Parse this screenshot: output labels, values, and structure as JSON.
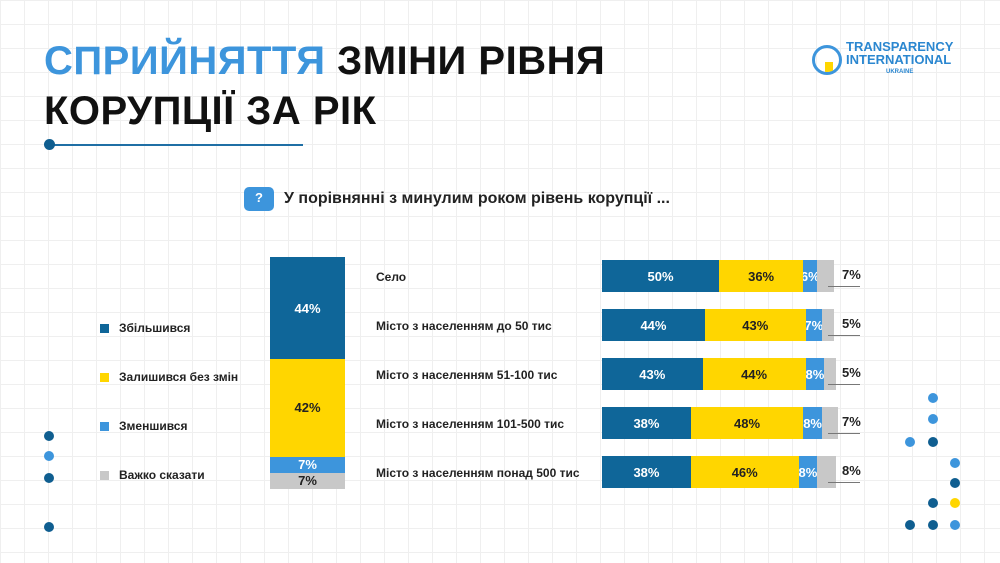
{
  "title": {
    "highlight": "СПРИЙНЯТТЯ",
    "rest_line1": " ЗМІНИ РІВНЯ",
    "line2": "КОРУПЦІЇ ЗА РІК"
  },
  "logo": {
    "line1": "TRANSPARENCY",
    "line2": "INTERNATIONAL",
    "line3": "UKRAINE"
  },
  "question": "У порівнянні з минулим роком рівень корупції ...",
  "colors": {
    "increased": "#0f6699",
    "unchanged": "#ffd600",
    "decreased": "#3d95dc",
    "hard_to_say": "#c8c8c8"
  },
  "chart_data": {
    "type": "bar",
    "stacked": true,
    "legend": [
      "Збільшився",
      "Залишився без змін",
      "Зменшився",
      "Важко сказати"
    ],
    "total": {
      "values": [
        44,
        42,
        7,
        7
      ],
      "labels": [
        "44%",
        "42%",
        "7%",
        "7%"
      ]
    },
    "categories": [
      "Село",
      "Місто з населенням до 50 тис",
      "Місто з населенням 51-100 тис",
      "Місто з населенням 101-500 тис",
      "Місто з населенням понад 500 тис"
    ],
    "series": [
      {
        "name": "Збільшився",
        "values": [
          50,
          44,
          43,
          38,
          38
        ],
        "labels": [
          "50%",
          "44%",
          "43%",
          "38%",
          "38%"
        ]
      },
      {
        "name": "Залишився без змін",
        "values": [
          36,
          43,
          44,
          48,
          46
        ],
        "labels": [
          "36%",
          "43%",
          "44%",
          "48%",
          "46%"
        ]
      },
      {
        "name": "Зменшився",
        "values": [
          6,
          7,
          8,
          8,
          8
        ],
        "labels": [
          "6%",
          "7%",
          "8%",
          "8%",
          "8%"
        ]
      },
      {
        "name": "Важко сказати",
        "values": [
          7,
          5,
          5,
          7,
          8
        ],
        "labels": [
          "7%",
          "5%",
          "5%",
          "7%",
          "8%"
        ]
      }
    ]
  }
}
